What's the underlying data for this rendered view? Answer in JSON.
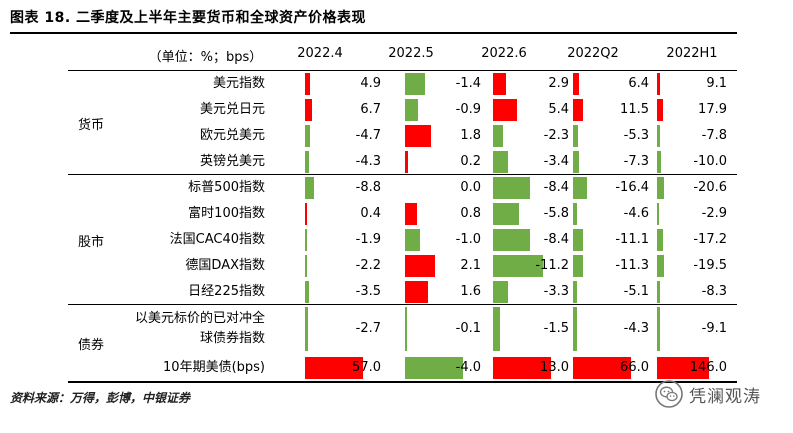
{
  "title": "图表 18. 二季度及上半年主要货币和全球资产价格表现",
  "header": {
    "unit_label": "（单位：%；bps）",
    "columns": [
      "2022.4",
      "2022.5",
      "2022.6",
      "2022Q2",
      "2022H1"
    ]
  },
  "groups": [
    {
      "name": "货币",
      "rows": [
        {
          "label": "美元指数",
          "values": [
            4.9,
            -1.4,
            2.9,
            6.4,
            9.1
          ]
        },
        {
          "label": "美元兑日元",
          "values": [
            6.7,
            -0.9,
            5.4,
            11.5,
            17.9
          ]
        },
        {
          "label": "欧元兑美元",
          "values": [
            -4.7,
            1.8,
            -2.3,
            -5.3,
            -7.8
          ]
        },
        {
          "label": "英镑兑美元",
          "values": [
            -4.3,
            0.2,
            -3.4,
            -7.3,
            -10.0
          ]
        }
      ]
    },
    {
      "name": "股市",
      "rows": [
        {
          "label": "标普500指数",
          "values": [
            -8.8,
            0.0,
            -8.4,
            -16.4,
            -20.6
          ]
        },
        {
          "label": "富时100指数",
          "values": [
            0.4,
            0.8,
            -5.8,
            -4.6,
            -2.9
          ]
        },
        {
          "label": "法国CAC40指数",
          "values": [
            -1.9,
            -1.0,
            -8.4,
            -11.1,
            -17.2
          ]
        },
        {
          "label": "德国DAX指数",
          "values": [
            -2.2,
            2.1,
            -11.2,
            -11.3,
            -19.5
          ]
        },
        {
          "label": "日经225指数",
          "values": [
            -3.5,
            1.6,
            -3.3,
            -5.1,
            -8.3
          ]
        }
      ]
    },
    {
      "name": "债券",
      "rows": [
        {
          "label": "以美元标价的已对冲全球债券指数",
          "values": [
            -2.7,
            -0.1,
            -1.5,
            -4.3,
            -9.1
          ]
        },
        {
          "label": "10年期美债(bps)",
          "values": [
            57.0,
            -4.0,
            13.0,
            66.0,
            146.0
          ]
        }
      ]
    }
  ],
  "colors": {
    "positive": "#ff0000",
    "negative": "#70ad47"
  },
  "source": "资料来源：万得，彭博，中银证券",
  "watermark": {
    "text": "凭澜观涛",
    "icon": "wechat-logo-icon"
  }
}
